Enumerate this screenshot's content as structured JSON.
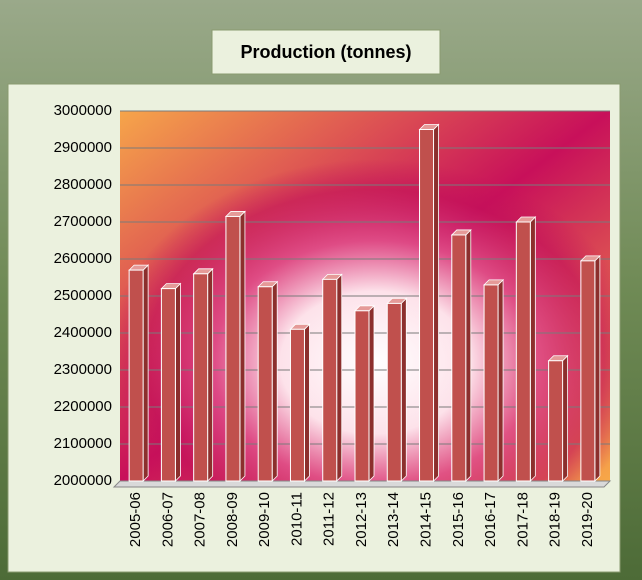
{
  "chart_data": {
    "type": "bar",
    "title": "Production (tonnes)",
    "categories": [
      "2005-06",
      "2006-07",
      "2007-08",
      "2008-09",
      "2009-10",
      "2010-11",
      "2011-12",
      "2012-13",
      "2013-14",
      "2014-15",
      "2015-16",
      "2016-17",
      "2017-18",
      "2018-19",
      "2019-20"
    ],
    "values": [
      2570000,
      2520000,
      2560000,
      2715000,
      2525000,
      2410000,
      2545000,
      2460000,
      2480000,
      2950000,
      2665000,
      2530000,
      2700000,
      2325000,
      2595000
    ],
    "color": "#c0504d",
    "ylim": [
      2000000,
      3000000
    ],
    "yticks": [
      2000000,
      2100000,
      2200000,
      2300000,
      2400000,
      2500000,
      2600000,
      2700000,
      2800000,
      2900000,
      3000000
    ],
    "grid": true
  }
}
